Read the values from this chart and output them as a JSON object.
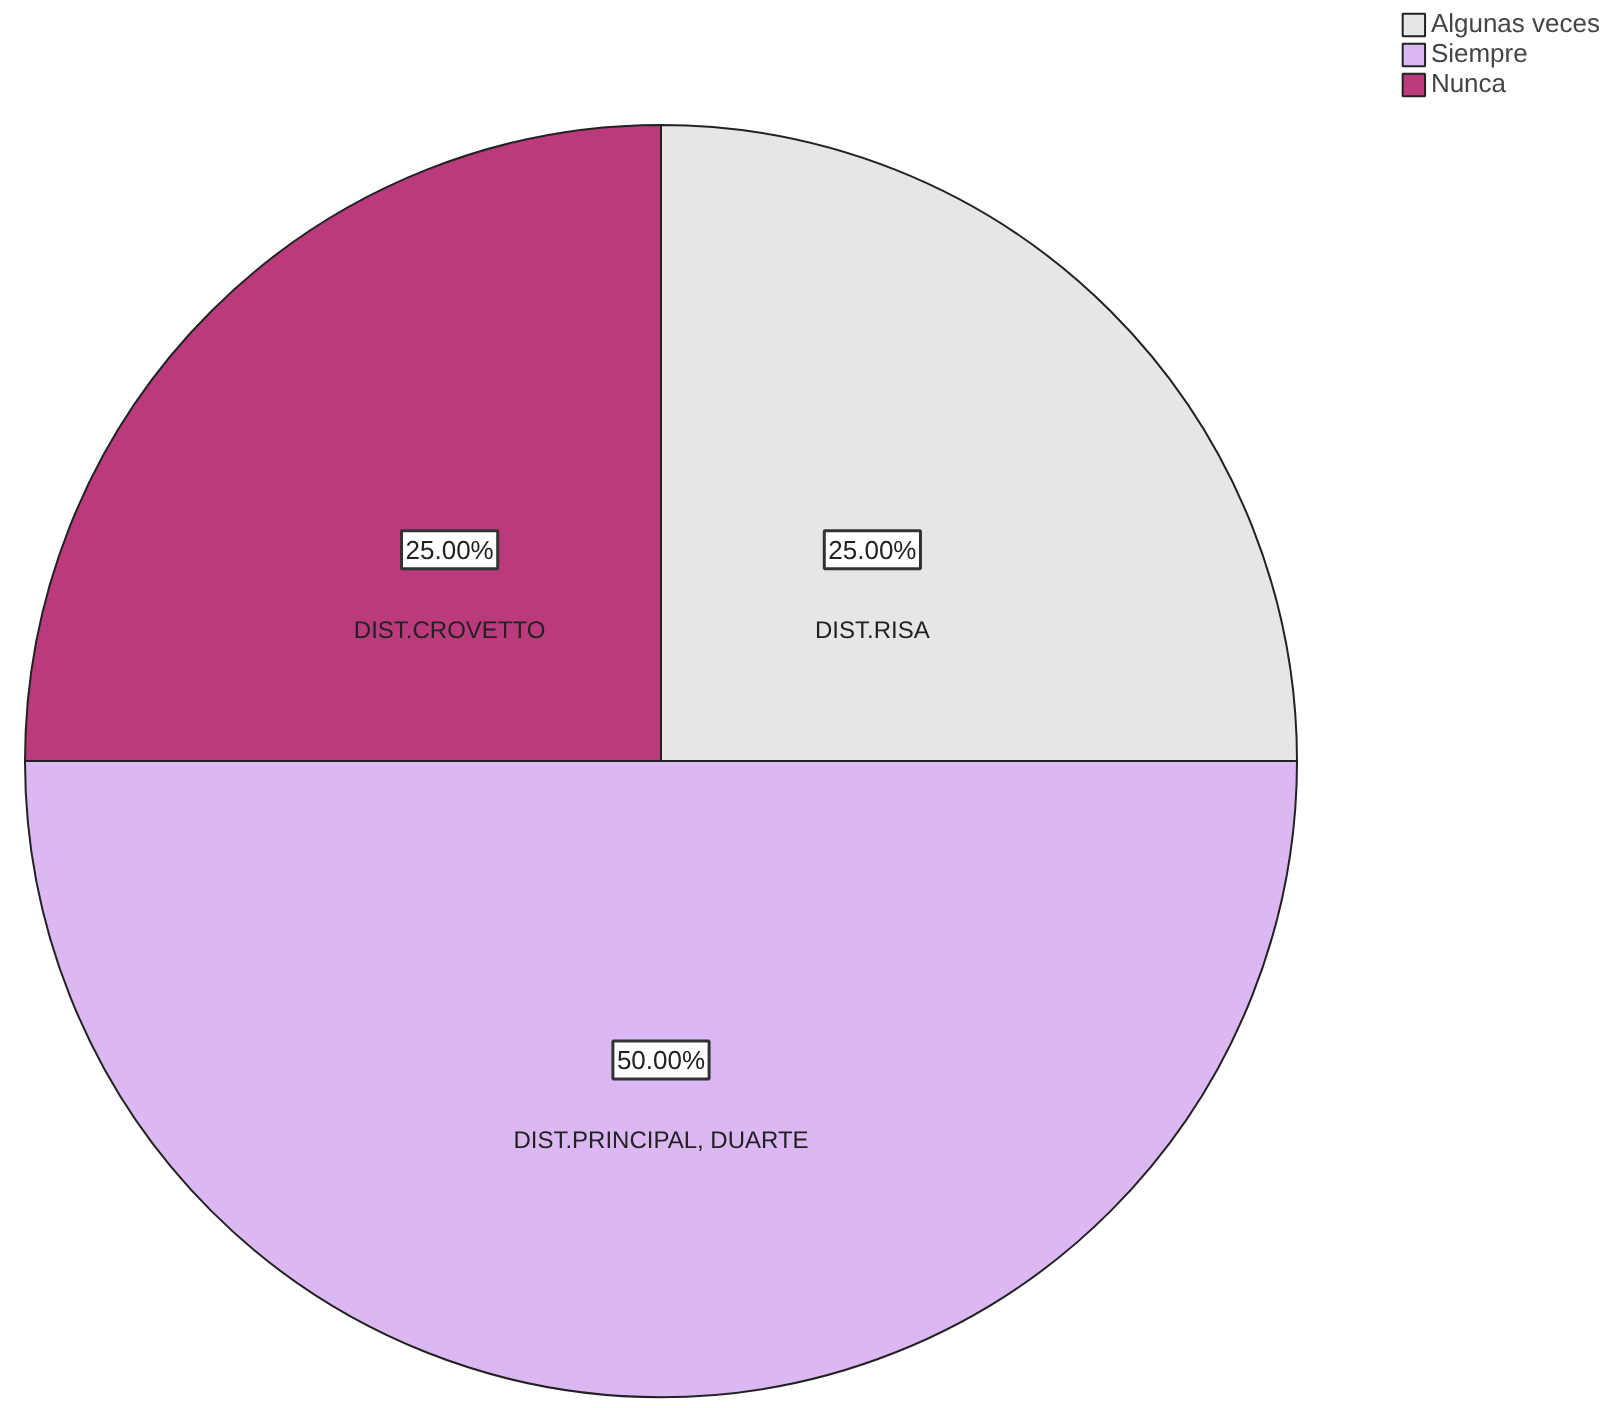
{
  "chart_data": {
    "type": "pie",
    "categories": [
      "Algunas veces",
      "Siempre",
      "Nunca"
    ],
    "values": [
      25,
      50,
      25
    ],
    "colors": [
      "#e6e6e6",
      "#dbb8f2",
      "#bb3a7c"
    ],
    "value_labels": [
      "25.00%",
      "50.00%",
      "25.00%"
    ],
    "annotations": [
      {
        "text": "DIST.RISA",
        "x": "Algunas veces"
      },
      {
        "text": "DIST.PRINCIPAL, DUARTE",
        "x": "Siempre"
      },
      {
        "text": "DIST.CROVETTO",
        "x": "Nunca"
      }
    ],
    "legend": "top right"
  }
}
